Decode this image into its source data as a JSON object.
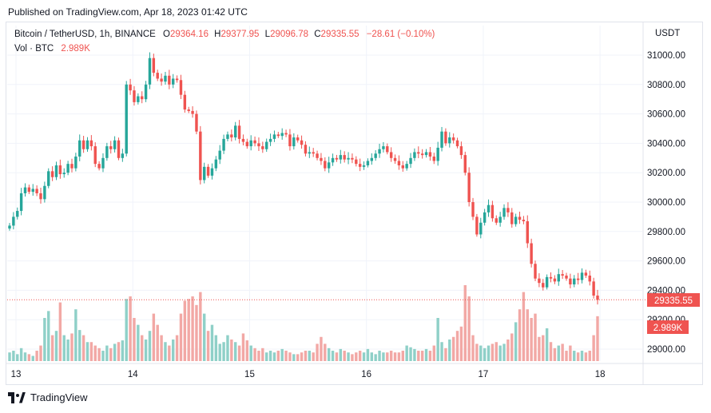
{
  "header": {
    "published": "Published on TradingView.com, Apr 18, 2023 01:42 UTC"
  },
  "legend": {
    "symbol": "Bitcoin / TetherUSD, 1h, BINANCE",
    "o_label": "O",
    "o_value": "29364.16",
    "h_label": "H",
    "h_value": "29377.95",
    "l_label": "L",
    "l_value": "29096.78",
    "c_label": "C",
    "c_value": "29335.55",
    "change": "−28.61 (−0.10%)",
    "vol_label": "Vol · BTC",
    "vol_value": "2.989K"
  },
  "footer": {
    "brand": "TradingView"
  },
  "colors": {
    "up": "#26a69a",
    "down": "#ef5350",
    "vol_up": "#8fd0c8",
    "vol_down": "#f2a8a5",
    "grid": "#f0f3fa",
    "text": "#131722"
  },
  "chart_data": {
    "type": "candlestick",
    "currency_label": "USDT",
    "ylim": [
      28900,
      31100
    ],
    "yticks": [
      29000,
      29200,
      29400,
      29600,
      29800,
      30000,
      30200,
      30400,
      30600,
      30800,
      31000
    ],
    "ytick_labels": [
      "29000.00",
      "29200.00",
      "29400.00",
      "29600.00",
      "29800.00",
      "30000.00",
      "30200.00",
      "30400.00",
      "30600.00",
      "30800.00",
      "31000.00"
    ],
    "xtick_labels": [
      {
        "label": "13",
        "index": 0
      },
      {
        "label": "14",
        "index": 30
      },
      {
        "label": "15",
        "index": 60
      },
      {
        "label": "16",
        "index": 90
      },
      {
        "label": "17",
        "index": 120
      },
      {
        "label": "18",
        "index": 150
      }
    ],
    "last_price": 29335.55,
    "last_price_label": "29335.55",
    "last_volume_label": "2.989K",
    "closes": [
      29840,
      29900,
      29940,
      30060,
      30100,
      30070,
      30090,
      30060,
      30020,
      30110,
      30210,
      30170,
      30250,
      30190,
      30200,
      30260,
      30230,
      30310,
      30420,
      30360,
      30420,
      30380,
      30260,
      30230,
      30300,
      30380,
      30360,
      30420,
      30300,
      30330,
      30800,
      30760,
      30680,
      30720,
      30700,
      30800,
      30980,
      30880,
      30840,
      30820,
      30860,
      30800,
      30840,
      30830,
      30730,
      30630,
      30620,
      30600,
      30480,
      30150,
      30240,
      30180,
      30230,
      30290,
      30350,
      30430,
      30460,
      30440,
      30520,
      30430,
      30410,
      30380,
      30420,
      30400,
      30380,
      30360,
      30410,
      30430,
      30460,
      30450,
      30470,
      30460,
      30380,
      30440,
      30420,
      30390,
      30330,
      30340,
      30330,
      30300,
      30280,
      30230,
      30270,
      30300,
      30290,
      30320,
      30290,
      30300,
      30290,
      30260,
      30240,
      30250,
      30280,
      30300,
      30330,
      30360,
      30380,
      30340,
      30300,
      30280,
      30250,
      30230,
      30260,
      30300,
      30340,
      30330,
      30320,
      30340,
      30310,
      30280,
      30370,
      30480,
      30400,
      30440,
      30420,
      30380,
      30320,
      30200,
      30000,
      29900,
      29780,
      29860,
      29930,
      29980,
      29890,
      29860,
      29900,
      29960,
      29930,
      29850,
      29900,
      29880,
      29870,
      29720,
      29580,
      29480,
      29450,
      29420,
      29490,
      29480,
      29460,
      29510,
      29500,
      29480,
      29440,
      29480,
      29470,
      29520,
      29500,
      29460,
      29364,
      29335
    ],
    "volume_levels": [
      0.1,
      0.12,
      0.08,
      0.15,
      0.1,
      0.08,
      0.06,
      0.12,
      0.18,
      0.5,
      0.58,
      0.3,
      0.35,
      0.68,
      0.3,
      0.25,
      0.32,
      0.6,
      0.36,
      0.3,
      0.22,
      0.22,
      0.18,
      0.15,
      0.12,
      0.18,
      0.15,
      0.2,
      0.22,
      0.24,
      0.72,
      0.75,
      0.5,
      0.42,
      0.3,
      0.25,
      0.35,
      0.55,
      0.42,
      0.3,
      0.22,
      0.18,
      0.25,
      0.3,
      0.55,
      0.7,
      0.72,
      0.75,
      0.65,
      0.8,
      0.55,
      0.35,
      0.42,
      0.3,
      0.2,
      0.22,
      0.3,
      0.25,
      0.22,
      0.18,
      0.32,
      0.24,
      0.18,
      0.15,
      0.12,
      0.15,
      0.1,
      0.12,
      0.1,
      0.12,
      0.14,
      0.12,
      0.1,
      0.08,
      0.08,
      0.1,
      0.12,
      0.12,
      0.1,
      0.2,
      0.28,
      0.2,
      0.15,
      0.12,
      0.1,
      0.14,
      0.12,
      0.1,
      0.08,
      0.1,
      0.12,
      0.1,
      0.14,
      0.1,
      0.08,
      0.12,
      0.1,
      0.1,
      0.12,
      0.1,
      0.1,
      0.12,
      0.18,
      0.16,
      0.14,
      0.12,
      0.12,
      0.14,
      0.12,
      0.18,
      0.5,
      0.22,
      0.15,
      0.25,
      0.28,
      0.35,
      0.4,
      0.88,
      0.75,
      0.3,
      0.2,
      0.18,
      0.15,
      0.18,
      0.2,
      0.22,
      0.18,
      0.2,
      0.25,
      0.32,
      0.45,
      0.6,
      0.8,
      0.6,
      0.5,
      0.55,
      0.28,
      0.3,
      0.38,
      0.22,
      0.15,
      0.18,
      0.2,
      0.12,
      0.18,
      0.12,
      0.1,
      0.12,
      0.1,
      0.12,
      0.3,
      0.52
    ]
  }
}
